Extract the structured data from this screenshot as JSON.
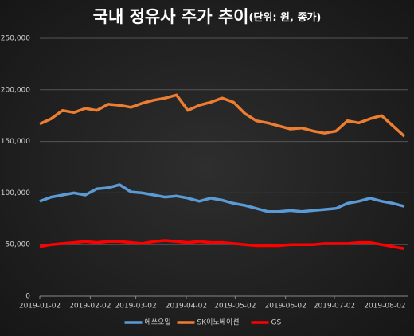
{
  "chart_data": {
    "type": "line",
    "title": "국내 정유사 주가 추이",
    "subtitle": "(단위: 원, 종가)",
    "x": [
      "2019-01-02",
      "2019-01-09",
      "2019-01-16",
      "2019-01-23",
      "2019-01-30",
      "2019-02-06",
      "2019-02-13",
      "2019-02-20",
      "2019-02-27",
      "2019-03-06",
      "2019-03-13",
      "2019-03-20",
      "2019-03-27",
      "2019-04-03",
      "2019-04-10",
      "2019-04-17",
      "2019-04-24",
      "2019-05-01",
      "2019-05-08",
      "2019-05-15",
      "2019-05-22",
      "2019-05-29",
      "2019-06-05",
      "2019-06-12",
      "2019-06-19",
      "2019-06-26",
      "2019-07-03",
      "2019-07-10",
      "2019-07-17",
      "2019-07-24",
      "2019-07-31",
      "2019-08-07",
      "2019-08-14"
    ],
    "xlim": [
      "2019-01-02",
      "2019-08-16"
    ],
    "xticks": [
      "2019-01-02",
      "2019-02-02",
      "2019-03-02",
      "2019-04-02",
      "2019-05-02",
      "2019-06-02",
      "2019-07-02",
      "2019-08-02"
    ],
    "series": [
      {
        "name": "에쓰오일",
        "color": "#5b9bd5",
        "values": [
          92000,
          96000,
          98000,
          100000,
          98000,
          104000,
          105000,
          108000,
          101000,
          100000,
          98000,
          96000,
          97000,
          95000,
          92000,
          95000,
          93000,
          90000,
          88000,
          85000,
          82000,
          82000,
          83000,
          82000,
          83000,
          84000,
          85000,
          90000,
          92000,
          95000,
          92000,
          90000,
          87000
        ]
      },
      {
        "name": "SK이노베이션",
        "color": "#ed7d31",
        "values": [
          167000,
          172000,
          180000,
          178000,
          182000,
          180000,
          186000,
          185000,
          183000,
          187000,
          190000,
          192000,
          195000,
          180000,
          185000,
          188000,
          192000,
          188000,
          177000,
          170000,
          168000,
          165000,
          162000,
          163000,
          160000,
          158000,
          160000,
          170000,
          168000,
          172000,
          175000,
          165000,
          155000
        ]
      },
      {
        "name": "GS",
        "color": "#ff0000",
        "values": [
          48000,
          50000,
          51000,
          52000,
          53000,
          52000,
          53000,
          53000,
          52000,
          51000,
          53000,
          54000,
          53000,
          52000,
          53000,
          52000,
          52000,
          51000,
          50000,
          49000,
          49000,
          49000,
          50000,
          50000,
          50000,
          51000,
          51000,
          51000,
          52000,
          52000,
          50000,
          48000,
          46000
        ]
      }
    ],
    "ylim": [
      0,
      250000
    ],
    "yticks": [
      0,
      {
        "value": 50000,
        "label": "50,000"
      },
      {
        "value": 100000,
        "label": "100,000"
      },
      {
        "value": 150000,
        "label": "150,000"
      },
      {
        "value": 200000,
        "label": "200,000"
      },
      {
        "value": 250000,
        "label": "250,000"
      }
    ],
    "grid": true,
    "legend": "bottom"
  }
}
